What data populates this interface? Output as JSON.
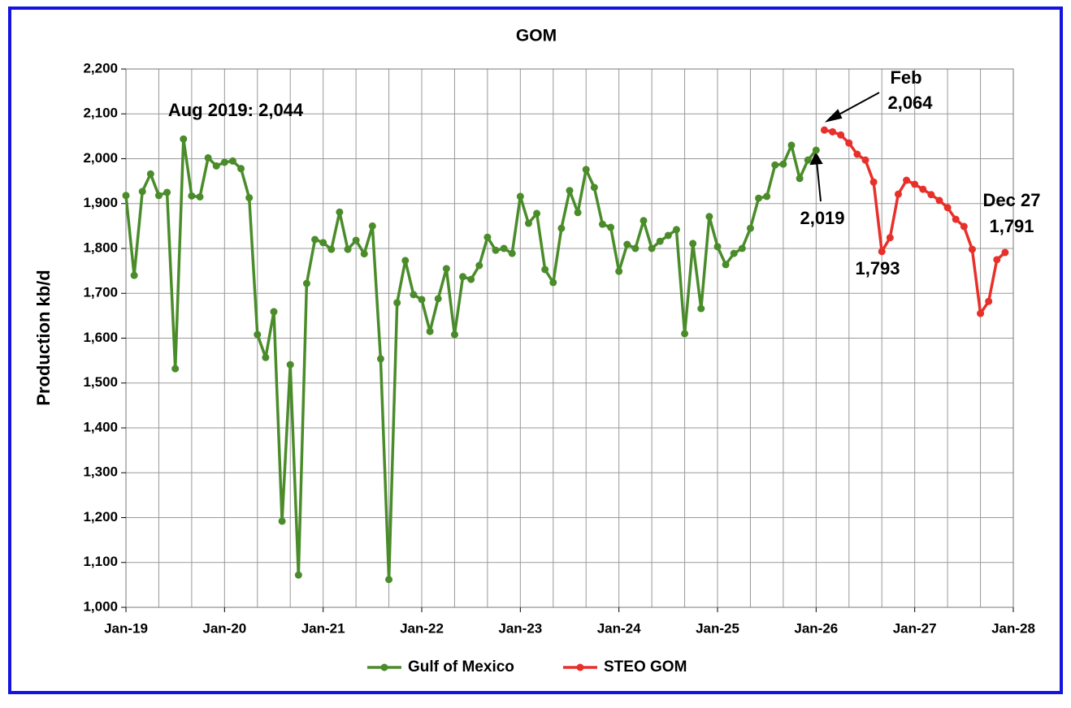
{
  "chart_data": {
    "type": "line",
    "title": "GOM",
    "y_label": "Production kb/d",
    "ylim": [
      1000,
      2200
    ],
    "yticks": [
      {
        "value": 1000,
        "label": "1,000"
      },
      {
        "value": 1100,
        "label": "1,100"
      },
      {
        "value": 1200,
        "label": "1,200"
      },
      {
        "value": 1300,
        "label": "1,300"
      },
      {
        "value": 1400,
        "label": "1,400"
      },
      {
        "value": 1500,
        "label": "1,500"
      },
      {
        "value": 1600,
        "label": "1,600"
      },
      {
        "value": 1700,
        "label": "1,700"
      },
      {
        "value": 1800,
        "label": "1,800"
      },
      {
        "value": 1900,
        "label": "1,900"
      },
      {
        "value": 2000,
        "label": "2,000"
      },
      {
        "value": 2100,
        "label": "2,100"
      },
      {
        "value": 2200,
        "label": "2,200"
      }
    ],
    "xlim": [
      "2019-01",
      "2028-01"
    ],
    "xticks": [
      {
        "value": "2019-01",
        "label": "Jan-19"
      },
      {
        "value": "2020-01",
        "label": "Jan-20"
      },
      {
        "value": "2021-01",
        "label": "Jan-21"
      },
      {
        "value": "2022-01",
        "label": "Jan-22"
      },
      {
        "value": "2023-01",
        "label": "Jan-23"
      },
      {
        "value": "2024-01",
        "label": "Jan-24"
      },
      {
        "value": "2025-01",
        "label": "Jan-25"
      },
      {
        "value": "2026-01",
        "label": "Jan-26"
      },
      {
        "value": "2027-01",
        "label": "Jan-27"
      },
      {
        "value": "2028-01",
        "label": "Jan-28"
      }
    ],
    "x_minor_grid": [
      "2019-05",
      "2019-09",
      "2020-05",
      "2020-09",
      "2021-05",
      "2021-09",
      "2022-05",
      "2022-09",
      "2023-05",
      "2023-09",
      "2024-05",
      "2024-09",
      "2025-05",
      "2025-09",
      "2026-05",
      "2026-09",
      "2027-05",
      "2027-09"
    ],
    "grid": true,
    "legend": "bottom",
    "series": [
      {
        "name": "Gulf of Mexico",
        "color": "#4a8c2a",
        "x": [
          "2019-01",
          "2019-02",
          "2019-03",
          "2019-04",
          "2019-05",
          "2019-06",
          "2019-07",
          "2019-08",
          "2019-09",
          "2019-10",
          "2019-11",
          "2019-12",
          "2020-01",
          "2020-02",
          "2020-03",
          "2020-04",
          "2020-05",
          "2020-06",
          "2020-07",
          "2020-08",
          "2020-09",
          "2020-10",
          "2020-11",
          "2020-12",
          "2021-01",
          "2021-02",
          "2021-03",
          "2021-04",
          "2021-05",
          "2021-06",
          "2021-07",
          "2021-08",
          "2021-09",
          "2021-10",
          "2021-11",
          "2021-12",
          "2022-01",
          "2022-02",
          "2022-03",
          "2022-04",
          "2022-05",
          "2022-06",
          "2022-07",
          "2022-08",
          "2022-09",
          "2022-10",
          "2022-11",
          "2022-12",
          "2023-01",
          "2023-02",
          "2023-03",
          "2023-04",
          "2023-05",
          "2023-06",
          "2023-07",
          "2023-08",
          "2023-09",
          "2023-10",
          "2023-11",
          "2023-12",
          "2024-01",
          "2024-02",
          "2024-03",
          "2024-04",
          "2024-05",
          "2024-06",
          "2024-07",
          "2024-08",
          "2024-09",
          "2024-10",
          "2024-11",
          "2024-12",
          "2025-01",
          "2025-02",
          "2025-03",
          "2025-04",
          "2025-05",
          "2025-06",
          "2025-07",
          "2025-08",
          "2025-09",
          "2025-10",
          "2025-11",
          "2025-12",
          "2026-01"
        ],
        "values": [
          1918,
          1740,
          1927,
          1966,
          1918,
          1925,
          1532,
          2044,
          1917,
          1915,
          2002,
          1984,
          1992,
          1995,
          1978,
          1913,
          1608,
          1557,
          1659,
          1192,
          1541,
          1072,
          1722,
          1820,
          1813,
          1798,
          1881,
          1798,
          1818,
          1788,
          1850,
          1554,
          1062,
          1679,
          1773,
          1697,
          1686,
          1615,
          1688,
          1755,
          1608,
          1737,
          1731,
          1762,
          1825,
          1796,
          1800,
          1789,
          1916,
          1856,
          1878,
          1753,
          1724,
          1845,
          1929,
          1880,
          1976,
          1936,
          1854,
          1847,
          1749,
          1809,
          1800,
          1862,
          1800,
          1816,
          1829,
          1842,
          1610,
          1811,
          1666,
          1871,
          1804,
          1764,
          1789,
          1800,
          1845,
          1912,
          1916,
          1986,
          1988,
          2030,
          1956,
          1997,
          2019
        ]
      },
      {
        "name": "STEO GOM",
        "color": "#e8302a",
        "x": [
          "2026-02",
          "2026-03",
          "2026-04",
          "2026-05",
          "2026-06",
          "2026-07",
          "2026-08",
          "2026-09",
          "2026-10",
          "2026-11",
          "2026-12",
          "2027-01",
          "2027-02",
          "2027-03",
          "2027-04",
          "2027-05",
          "2027-06",
          "2027-07",
          "2027-08",
          "2027-09",
          "2027-10",
          "2027-11",
          "2027-12"
        ],
        "values": [
          2064,
          2060,
          2053,
          2035,
          2010,
          1997,
          1948,
          1793,
          1824,
          1921,
          1952,
          1943,
          1932,
          1920,
          1907,
          1891,
          1865,
          1849,
          1798,
          1655,
          1682,
          1775,
          1791
        ]
      }
    ],
    "annotations": [
      "Aug 2019: 2,044",
      "Feb",
      "2,064",
      "2,019",
      "1,793",
      "Dec 27",
      "1,791"
    ]
  }
}
